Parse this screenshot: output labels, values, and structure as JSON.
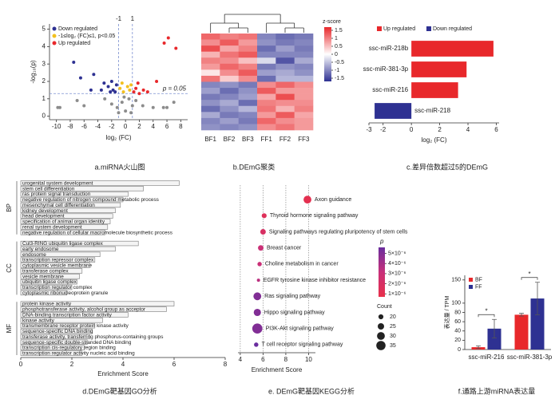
{
  "chart_data": [
    {
      "type": "scatter",
      "caption": "a.miRNA火山图",
      "xlabel": "log₂ (FC)",
      "ylabel": "-log₁₀(p)",
      "xlim": [
        -11,
        9
      ],
      "ylim": [
        -0.2,
        5.3
      ],
      "xticks": [
        -10,
        -8,
        -6,
        -4,
        -2,
        0,
        2,
        4,
        6,
        8
      ],
      "yticks": [
        0,
        1,
        2,
        3,
        4,
        5
      ],
      "x_thresholds": [
        -1,
        1
      ],
      "y_threshold": 1.3,
      "threshold_label": "p = 0.05",
      "series": [
        {
          "name": "Down regulated",
          "color": "#2e3192",
          "x": [
            -7.5,
            -6.5,
            -4.6,
            -3.1,
            -2.5,
            -2.0,
            -1.8,
            -1.5,
            -1.3,
            -2.2,
            -5.0,
            -3.5
          ],
          "values": [
            3.1,
            2.2,
            2.4,
            1.9,
            1.7,
            2.0,
            1.5,
            1.4,
            1.8,
            1.4,
            1.5,
            1.5
          ]
        },
        {
          "name": "-1≤log₂ (FC)≤1, p<0.05",
          "color": "#f2c01e",
          "x": [
            -0.8,
            -0.5,
            0.3,
            0.6,
            -0.3,
            0.8
          ],
          "values": [
            1.6,
            1.9,
            1.7,
            1.5,
            1.4,
            1.8
          ]
        },
        {
          "name": "Up regulated",
          "color": "#e8282b",
          "x": [
            1.2,
            1.5,
            2.0,
            2.6,
            3.2,
            4.5,
            6.2,
            7.3,
            5.6,
            1.8
          ],
          "values": [
            1.4,
            1.6,
            1.3,
            1.5,
            1.4,
            2.0,
            4.5,
            3.9,
            4.2,
            1.9
          ]
        },
        {
          "color": "#8c8c8c",
          "x": [
            -9.8,
            -9.5,
            -7.0,
            -6.0,
            -3.0,
            -2.0,
            -1.2,
            -0.5,
            0,
            0.5,
            1.0,
            1.5,
            2.5,
            4.0,
            5.5,
            6.0,
            7.0,
            -0.2,
            -1.0,
            0.8
          ],
          "values": [
            0.5,
            0.5,
            0.9,
            0.6,
            1.0,
            0.7,
            0.5,
            0.8,
            0.3,
            1.0,
            0.6,
            0.9,
            0.6,
            0.5,
            0.5,
            0.5,
            0.8,
            1.1,
            0.2,
            0.2
          ]
        }
      ]
    },
    {
      "type": "heatmap",
      "caption": "b.DEmG聚类",
      "colorbar_title": "z-score",
      "columns": [
        "BF1",
        "BF2",
        "BF3",
        "FF1",
        "FF2",
        "FF3"
      ],
      "clim": [
        -1.7,
        1.7
      ],
      "cticks": [
        1.5,
        1,
        0.5,
        0,
        -0.5,
        -1,
        -1.5
      ],
      "colors": [
        "#2e3192",
        "#ffffff",
        "#e8282b"
      ],
      "values": [
        [
          1.2,
          1.0,
          1.1,
          -1.0,
          -1.2,
          -1.1
        ],
        [
          0.9,
          1.3,
          0.8,
          -0.9,
          -1.1,
          -1.0
        ],
        [
          1.4,
          0.7,
          1.0,
          -1.2,
          -0.8,
          -1.1
        ],
        [
          0.6,
          1.1,
          1.3,
          -1.0,
          -1.0,
          -1.0
        ],
        [
          1.0,
          0.9,
          0.5,
          -0.3,
          -1.4,
          -0.7
        ],
        [
          0.8,
          1.2,
          1.0,
          -1.1,
          -0.9,
          -1.0
        ],
        [
          0.2,
          0.9,
          1.3,
          -0.8,
          -0.7,
          -0.9
        ],
        [
          1.1,
          0.4,
          0.9,
          -1.2,
          -0.6,
          -0.6
        ],
        [
          -1.0,
          -0.9,
          -1.1,
          0.9,
          1.2,
          0.9
        ],
        [
          -0.8,
          -1.2,
          -0.9,
          1.3,
          0.8,
          0.8
        ],
        [
          -1.1,
          -1.0,
          -0.8,
          0.7,
          1.4,
          0.8
        ],
        [
          -0.9,
          -0.7,
          -1.2,
          1.0,
          0.9,
          0.9
        ],
        [
          -1.2,
          -0.9,
          -0.6,
          1.1,
          0.6,
          1.0
        ],
        [
          -0.7,
          -1.1,
          -1.0,
          0.8,
          1.3,
          0.7
        ],
        [
          -1.0,
          -0.8,
          -1.1,
          1.2,
          0.9,
          0.8
        ],
        [
          -0.9,
          -1.0,
          -0.9,
          0.9,
          1.1,
          0.8
        ]
      ]
    },
    {
      "type": "bar",
      "orientation": "horizontal",
      "caption": "c.差异倍数超过5的DEmG",
      "xlabel": "log₂ (FC)",
      "categories": [
        "ssc-miR-218b",
        "ssc-miR-381-3p",
        "ssc-miR-216",
        "ssc-miR-218"
      ],
      "values": [
        5.8,
        3.9,
        3.3,
        -2.6
      ],
      "xlim": [
        -3,
        6.2
      ],
      "xticks": [
        -3,
        -2,
        0,
        2,
        4,
        6
      ],
      "legend": [
        {
          "label": "Up regulated",
          "color": "#e8282b"
        },
        {
          "label": "Down regulated",
          "color": "#2e3192"
        }
      ]
    },
    {
      "type": "bar",
      "orientation": "horizontal",
      "caption": "d.DEmG靶基因GO分析",
      "xlabel": "Enrichment Score",
      "xlim": [
        0,
        8
      ],
      "xticks": [
        0,
        2,
        4,
        6,
        8
      ],
      "bar_color": "#f4f4f4",
      "groups": [
        {
          "name": "BP",
          "categories": [
            "urogenital system development",
            "stem cell differentiation",
            "ras protein signal transduction",
            "negative regulation of nitrogen compound metabolic process",
            "mesenchymal cell differentiation",
            "kidney development",
            "head development",
            "specification of animal organ identity",
            "renal system development",
            "negative regulation of cellular macromolecule biosynthetic process"
          ],
          "values": [
            6.2,
            4.8,
            4.2,
            4.0,
            3.9,
            3.7,
            3.6,
            3.5,
            3.4,
            3.3
          ]
        },
        {
          "name": "CC",
          "categories": [
            "Cul3-RING ubiquitin ligase complex",
            "early endosome",
            "endosome",
            "transcription repressor complex",
            "cytoplasmic vesicle membrane",
            "transferase complex",
            "vesicle membrane",
            "ubiquitin ligase complex",
            "transcription regulator complex",
            "cytoplasmic ribonucleoprotein granule"
          ],
          "values": [
            4.6,
            3.7,
            3.1,
            2.9,
            2.7,
            2.4,
            2.3,
            2.2,
            2.0,
            1.8
          ]
        },
        {
          "name": "MF",
          "categories": [
            "protein kinase activity",
            "phosphotransferase activity, alcohol group as acceptor",
            "DNA-binding transcription factor activity",
            "kinase activity",
            "transmembrane receptor protein kinase activity",
            "sequence-specific DNA binding",
            "transferase activity, transferring phosphorus-containing groups",
            "sequence-specific double-stranded DNA binding",
            "transcription cis-regulatory region binding",
            "transcription regulator activity nucleic acid binding"
          ],
          "values": [
            6.0,
            5.7,
            4.2,
            3.2,
            2.9,
            2.8,
            2.7,
            2.6,
            2.5,
            2.4
          ]
        }
      ]
    },
    {
      "type": "bubble",
      "caption": "e. DEmG靶基因KEGG分析",
      "xlabel": "Enrichment Score",
      "xlim": [
        3.8,
        10.6
      ],
      "xticks": [
        4,
        6,
        8,
        10
      ],
      "categories": [
        "Axon guidance",
        "Thyroid hormone signaling pathway",
        "Signaling pathways regulating pluripotency of stem cells",
        "Breast cancer",
        "Choline metabolism in cancer",
        "EGFR tyrosine kinase inhibitor resistance",
        "Ras signaling pathway",
        "Hippo signaling pathway",
        "PI3K-Akt signaling pathway",
        "T cell receptor signaling pathway"
      ],
      "values": [
        9.9,
        6.1,
        6.0,
        5.8,
        5.7,
        5.6,
        5.5,
        5.5,
        5.5,
        5.4
      ],
      "p_values": [
        1e-06,
        1.5e-06,
        2e-06,
        3e-06,
        3e-06,
        3.5e-06,
        5e-06,
        5e-06,
        5e-06,
        6e-06
      ],
      "counts": [
        30,
        20,
        22,
        22,
        18,
        14,
        30,
        28,
        38,
        18
      ],
      "p_title": "p",
      "p_lim": [
        7e-07,
        5.6e-06
      ],
      "p_colors": [
        "#e8304a",
        "#c8307a",
        "#6a2d9e"
      ],
      "p_ticks": [
        {
          "value": 5e-06,
          "label": "5×10⁻⁶"
        },
        {
          "value": 4e-06,
          "label": "4×10⁻⁶"
        },
        {
          "value": 3e-06,
          "label": "3×10⁻⁶"
        },
        {
          "value": 2e-06,
          "label": "2×10⁻⁶"
        },
        {
          "value": 1e-06,
          "label": "1×10⁻⁶"
        }
      ],
      "count_title": "Count",
      "count_ticks": [
        20,
        25,
        30,
        35
      ]
    },
    {
      "type": "bar",
      "caption": "f.通路上游miRNA表达量",
      "ylabel": "表达量 / TPM",
      "categories": [
        "ssc-miR-216",
        "ssc-miR-381-3p"
      ],
      "ylim": [
        0,
        160
      ],
      "yticks": [
        0,
        20,
        40,
        60,
        80,
        100,
        150
      ],
      "series": [
        {
          "name": "BF",
          "color": "#e8282b",
          "values": [
            5,
            75
          ],
          "errors": [
            3,
            3
          ]
        },
        {
          "name": "FF",
          "color": "#2e3192",
          "values": [
            45,
            110
          ],
          "errors": [
            20,
            35
          ]
        }
      ],
      "significance": [
        "*",
        "*"
      ]
    }
  ]
}
